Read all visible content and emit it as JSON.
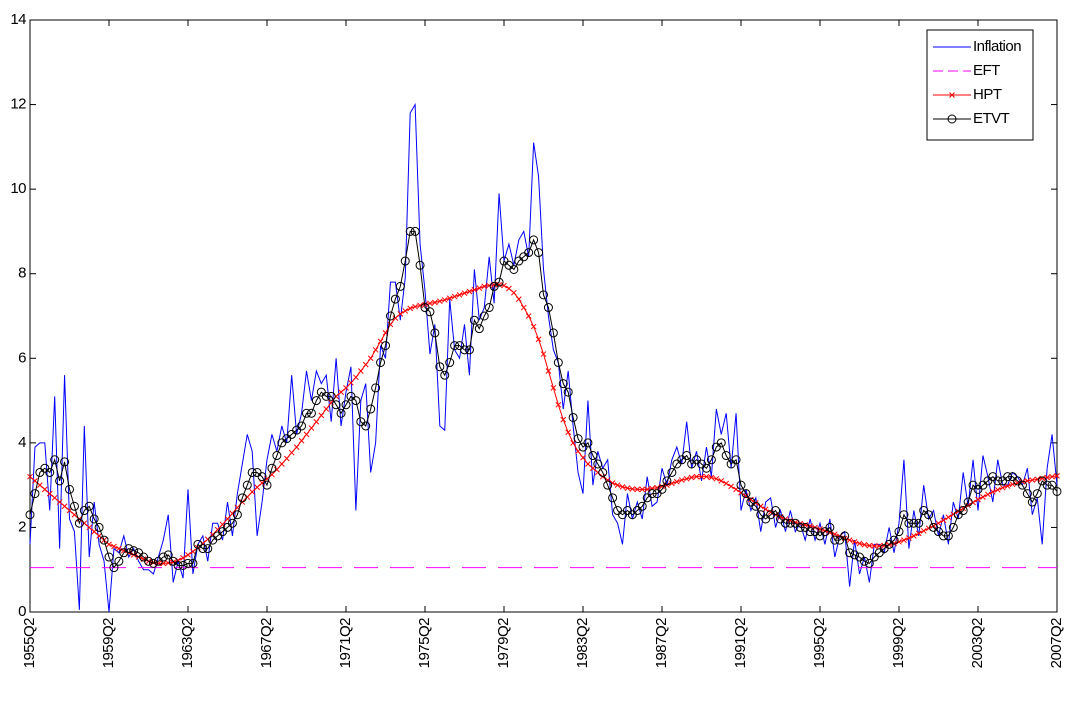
{
  "chart_data": {
    "type": "line",
    "categories": [
      "1955Q2",
      null,
      null,
      null,
      null,
      null,
      null,
      null,
      null,
      null,
      null,
      null,
      null,
      null,
      null,
      null,
      "1959Q2",
      null,
      null,
      null,
      null,
      null,
      null,
      null,
      null,
      null,
      null,
      null,
      null,
      null,
      null,
      null,
      "1963Q2",
      null,
      null,
      null,
      null,
      null,
      null,
      null,
      null,
      null,
      null,
      null,
      null,
      null,
      null,
      null,
      "1967Q2",
      null,
      null,
      null,
      null,
      null,
      null,
      null,
      null,
      null,
      null,
      null,
      null,
      null,
      null,
      null,
      "1971Q2",
      null,
      null,
      null,
      null,
      null,
      null,
      null,
      null,
      null,
      null,
      null,
      null,
      null,
      null,
      null,
      "1975Q2",
      null,
      null,
      null,
      null,
      null,
      null,
      null,
      null,
      null,
      null,
      null,
      null,
      null,
      null,
      null,
      "1979Q2",
      null,
      null,
      null,
      null,
      null,
      null,
      null,
      null,
      null,
      null,
      null,
      null,
      null,
      null,
      null,
      "1983Q2",
      null,
      null,
      null,
      null,
      null,
      null,
      null,
      null,
      null,
      null,
      null,
      null,
      null,
      null,
      null,
      "1987Q2",
      null,
      null,
      null,
      null,
      null,
      null,
      null,
      null,
      null,
      null,
      null,
      null,
      null,
      null,
      null,
      "1991Q2",
      null,
      null,
      null,
      null,
      null,
      null,
      null,
      null,
      null,
      null,
      null,
      null,
      null,
      null,
      null,
      "1995Q2",
      null,
      null,
      null,
      null,
      null,
      null,
      null,
      null,
      null,
      null,
      null,
      null,
      null,
      null,
      null,
      "1999Q2",
      null,
      null,
      null,
      null,
      null,
      null,
      null,
      null,
      null,
      null,
      null,
      null,
      null,
      null,
      null,
      "2003Q2",
      null,
      null,
      null,
      null,
      null,
      null,
      null,
      null,
      null,
      null,
      null,
      null,
      null,
      null,
      null,
      "2007Q2"
    ],
    "ylim": [
      0,
      14
    ],
    "yticks": [
      0,
      2,
      4,
      6,
      8,
      10,
      12,
      14
    ],
    "legend": "upper right",
    "series": [
      {
        "name": "Inflation",
        "color": "#0000ff",
        "values": [
          1.6,
          3.9,
          4.0,
          4.0,
          2.4,
          5.1,
          1.5,
          5.6,
          2.2,
          1.9,
          0.05,
          4.4,
          1.3,
          2.6,
          1.6,
          1.2,
          0.0,
          1.5,
          1.4,
          1.8,
          1.3,
          1.5,
          1.2,
          1.0,
          1.0,
          0.9,
          1.3,
          1.7,
          2.3,
          0.7,
          1.2,
          0.8,
          2.9,
          0.9,
          1.6,
          1.8,
          1.2,
          2.1,
          2.1,
          1.7,
          2.6,
          1.8,
          2.8,
          3.5,
          4.2,
          3.8,
          1.8,
          2.6,
          3.6,
          4.2,
          3.8,
          4.4,
          4.0,
          5.6,
          4.2,
          4.7,
          5.7,
          5.0,
          5.7,
          5.4,
          5.6,
          4.5,
          6.0,
          4.4,
          5.2,
          5.8,
          2.4,
          5.0,
          5.4,
          3.3,
          4.0,
          6.3,
          6.0,
          7.8,
          7.8,
          6.9,
          7.9,
          11.8,
          12.0,
          8.7,
          7.6,
          6.1,
          6.8,
          4.4,
          4.3,
          7.4,
          6.2,
          6.0,
          6.8,
          5.6,
          8.1,
          6.9,
          7.2,
          8.4,
          7.3,
          9.9,
          8.3,
          8.7,
          8.2,
          8.8,
          9.0,
          8.4,
          11.1,
          10.3,
          8.1,
          7.0,
          6.2,
          5.9,
          4.8,
          5.7,
          4.4,
          3.3,
          2.8,
          5.0,
          3.0,
          3.8,
          3.4,
          3.6,
          2.3,
          2.1,
          1.6,
          2.8,
          2.2,
          2.6,
          2.2,
          3.2,
          2.5,
          2.6,
          3.4,
          3.0,
          3.6,
          3.9,
          3.5,
          4.5,
          3.4,
          3.8,
          3.1,
          3.9,
          3.2,
          4.8,
          4.2,
          4.7,
          3.4,
          4.7,
          2.4,
          2.9,
          2.4,
          2.7,
          1.9,
          2.6,
          2.7,
          2.0,
          2.4,
          1.9,
          2.4,
          1.9,
          2.1,
          1.7,
          2.2,
          1.7,
          2.1,
          1.6,
          2.2,
          1.3,
          1.8,
          1.9,
          0.6,
          1.7,
          0.9,
          1.3,
          0.7,
          1.6,
          1.6,
          1.4,
          2.0,
          1.4,
          2.1,
          3.6,
          1.5,
          2.4,
          1.8,
          3.0,
          2.2,
          2.4,
          1.8,
          2.3,
          1.6,
          2.6,
          2.2,
          3.3,
          2.5,
          3.6,
          2.4,
          3.7,
          3.2,
          2.6,
          3.6,
          3.0,
          3.0,
          3.3,
          3.2,
          3.0,
          3.4,
          2.3,
          2.7,
          1.6,
          3.4,
          4.2,
          3.0
        ]
      },
      {
        "name": "EFT",
        "color": "#ff00ff",
        "value": 1.05,
        "dash": true
      },
      {
        "name": "HPT",
        "color": "#ff0000",
        "marker": "x",
        "values": [
          3.2,
          3.1,
          3.0,
          2.9,
          2.8,
          2.7,
          2.6,
          2.5,
          2.4,
          2.3,
          2.2,
          2.1,
          2.0,
          1.9,
          1.8,
          1.7,
          1.6,
          1.55,
          1.5,
          1.45,
          1.4,
          1.35,
          1.3,
          1.25,
          1.2,
          1.17,
          1.15,
          1.15,
          1.16,
          1.18,
          1.22,
          1.28,
          1.35,
          1.43,
          1.52,
          1.62,
          1.72,
          1.83,
          1.95,
          2.07,
          2.2,
          2.33,
          2.47,
          2.6,
          2.72,
          2.84,
          2.95,
          3.05,
          3.15,
          3.25,
          3.37,
          3.5,
          3.63,
          3.77,
          3.9,
          4.05,
          4.2,
          4.35,
          4.5,
          4.65,
          4.8,
          4.95,
          5.1,
          5.2,
          5.3,
          5.42,
          5.55,
          5.7,
          5.85,
          6.0,
          6.2,
          6.4,
          6.6,
          6.8,
          6.95,
          7.05,
          7.12,
          7.18,
          7.22,
          7.25,
          7.27,
          7.3,
          7.32,
          7.35,
          7.38,
          7.42,
          7.46,
          7.5,
          7.54,
          7.58,
          7.62,
          7.66,
          7.7,
          7.72,
          7.74,
          7.74,
          7.72,
          7.65,
          7.55,
          7.4,
          7.2,
          7.0,
          6.75,
          6.45,
          6.1,
          5.7,
          5.3,
          4.9,
          4.55,
          4.25,
          4.0,
          3.8,
          3.65,
          3.5,
          3.4,
          3.3,
          3.2,
          3.12,
          3.05,
          3.0,
          2.96,
          2.93,
          2.91,
          2.9,
          2.9,
          2.9,
          2.92,
          2.94,
          2.97,
          3.0,
          3.04,
          3.08,
          3.12,
          3.15,
          3.18,
          3.2,
          3.2,
          3.2,
          3.18,
          3.15,
          3.1,
          3.04,
          2.97,
          2.9,
          2.82,
          2.74,
          2.66,
          2.58,
          2.5,
          2.43,
          2.36,
          2.3,
          2.25,
          2.2,
          2.16,
          2.12,
          2.09,
          2.06,
          2.03,
          2.0,
          1.96,
          1.92,
          1.88,
          1.84,
          1.79,
          1.74,
          1.7,
          1.66,
          1.62,
          1.59,
          1.57,
          1.56,
          1.56,
          1.57,
          1.59,
          1.62,
          1.66,
          1.7,
          1.75,
          1.8,
          1.86,
          1.92,
          1.98,
          2.04,
          2.1,
          2.17,
          2.24,
          2.31,
          2.38,
          2.45,
          2.52,
          2.59,
          2.66,
          2.72,
          2.78,
          2.84,
          2.89,
          2.94,
          2.98,
          3.02,
          3.05,
          3.08,
          3.1,
          3.12,
          3.14,
          3.16,
          3.18,
          3.2,
          3.22
        ]
      },
      {
        "name": "ETVT",
        "color": "#000000",
        "marker": "o",
        "values": [
          2.3,
          2.8,
          3.3,
          3.4,
          3.3,
          3.6,
          3.1,
          3.55,
          2.9,
          2.5,
          2.1,
          2.4,
          2.5,
          2.2,
          2.0,
          1.7,
          1.3,
          1.05,
          1.2,
          1.4,
          1.5,
          1.45,
          1.4,
          1.3,
          1.2,
          1.15,
          1.2,
          1.3,
          1.35,
          1.2,
          1.1,
          1.1,
          1.15,
          1.15,
          1.6,
          1.5,
          1.5,
          1.7,
          1.8,
          1.9,
          2.0,
          2.1,
          2.3,
          2.7,
          3.0,
          3.3,
          3.3,
          3.2,
          3.0,
          3.4,
          3.7,
          4.0,
          4.1,
          4.2,
          4.3,
          4.4,
          4.7,
          4.7,
          5.0,
          5.2,
          5.1,
          5.1,
          4.9,
          4.7,
          4.9,
          5.1,
          5.0,
          4.5,
          4.4,
          4.8,
          5.3,
          5.9,
          6.3,
          7.0,
          7.4,
          7.7,
          8.3,
          9.0,
          9.0,
          8.2,
          7.2,
          7.1,
          6.6,
          5.8,
          5.6,
          5.9,
          6.3,
          6.3,
          6.2,
          6.2,
          6.9,
          6.7,
          7.0,
          7.2,
          7.7,
          7.8,
          8.3,
          8.2,
          8.1,
          8.3,
          8.4,
          8.5,
          8.8,
          8.5,
          7.5,
          7.2,
          6.6,
          5.9,
          5.4,
          5.2,
          4.6,
          4.1,
          3.9,
          4.0,
          3.7,
          3.5,
          3.3,
          3.0,
          2.7,
          2.4,
          2.3,
          2.4,
          2.3,
          2.4,
          2.5,
          2.7,
          2.8,
          2.8,
          2.9,
          3.1,
          3.3,
          3.5,
          3.6,
          3.7,
          3.5,
          3.6,
          3.5,
          3.4,
          3.6,
          3.9,
          4.0,
          3.7,
          3.5,
          3.6,
          3.0,
          2.8,
          2.6,
          2.5,
          2.3,
          2.2,
          2.3,
          2.4,
          2.2,
          2.1,
          2.1,
          2.1,
          2.0,
          2.0,
          1.9,
          1.9,
          1.8,
          1.9,
          2.0,
          1.7,
          1.7,
          1.8,
          1.4,
          1.35,
          1.3,
          1.2,
          1.15,
          1.3,
          1.4,
          1.5,
          1.6,
          1.7,
          1.9,
          2.3,
          2.1,
          2.1,
          2.1,
          2.4,
          2.3,
          2.0,
          1.9,
          1.8,
          1.8,
          2.0,
          2.3,
          2.4,
          2.6,
          3.0,
          2.9,
          3.0,
          3.1,
          3.2,
          3.1,
          3.1,
          3.2,
          3.2,
          3.1,
          3.0,
          2.8,
          2.6,
          2.8,
          3.1,
          3.0,
          3.0,
          2.85
        ]
      }
    ]
  }
}
